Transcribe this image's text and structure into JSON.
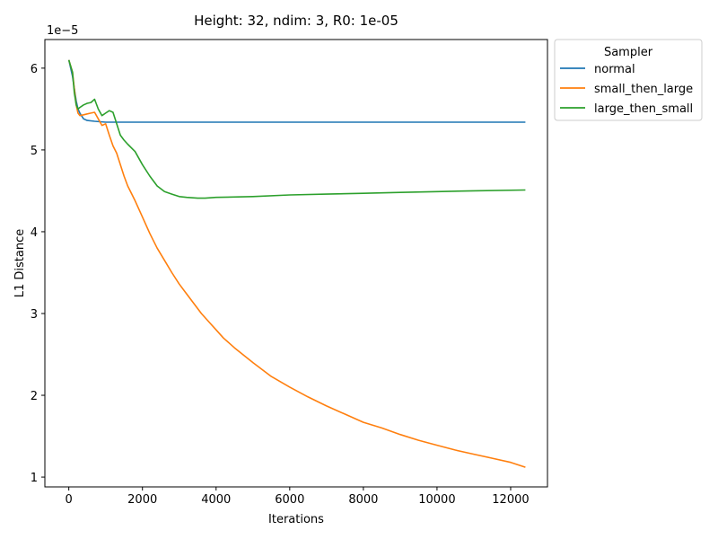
{
  "chart_data": {
    "type": "line",
    "title": "Height: 32, ndim: 3, R0: 1e-05",
    "xlabel": "Iterations",
    "ylabel": "L1 Distance",
    "y_scale_label": "1e−5",
    "xlim": [
      -650,
      13000
    ],
    "ylim": [
      0.88,
      6.35
    ],
    "x_ticks": [
      0,
      2000,
      4000,
      6000,
      8000,
      10000,
      12000
    ],
    "x_tick_labels": [
      "0",
      "2000",
      "4000",
      "6000",
      "8000",
      "10000",
      "12000"
    ],
    "y_ticks": [
      1,
      2,
      3,
      4,
      5,
      6
    ],
    "y_tick_labels": [
      "1",
      "2",
      "3",
      "4",
      "5",
      "6"
    ],
    "grid": false,
    "legend": {
      "title": "Sampler",
      "placement": "outside-top-right"
    },
    "series": [
      {
        "name": "normal",
        "color": "#1f77b4",
        "x": [
          0,
          100,
          150,
          200,
          250,
          300,
          400,
          500,
          700,
          1000,
          1500,
          2000,
          4000,
          8000,
          12400
        ],
        "y": [
          6.1,
          5.9,
          5.75,
          5.6,
          5.5,
          5.45,
          5.38,
          5.36,
          5.35,
          5.34,
          5.34,
          5.34,
          5.34,
          5.34,
          5.34
        ]
      },
      {
        "name": "small_then_large",
        "color": "#ff7f0e",
        "x": [
          0,
          100,
          150,
          200,
          250,
          300,
          400,
          500,
          600,
          700,
          800,
          900,
          1000,
          1100,
          1200,
          1300,
          1400,
          1500,
          1600,
          1800,
          2000,
          2200,
          2400,
          2600,
          2800,
          3000,
          3200,
          3400,
          3600,
          3800,
          4000,
          4200,
          4500,
          5000,
          5500,
          6000,
          6500,
          7000,
          7500,
          8000,
          8500,
          9000,
          9500,
          10000,
          10500,
          11000,
          11500,
          12000,
          12400
        ],
        "y": [
          6.1,
          5.95,
          5.75,
          5.55,
          5.45,
          5.42,
          5.43,
          5.44,
          5.45,
          5.46,
          5.38,
          5.3,
          5.32,
          5.18,
          5.05,
          4.96,
          4.82,
          4.68,
          4.56,
          4.38,
          4.18,
          3.98,
          3.8,
          3.65,
          3.5,
          3.36,
          3.24,
          3.12,
          3.0,
          2.9,
          2.8,
          2.7,
          2.58,
          2.4,
          2.23,
          2.1,
          1.98,
          1.87,
          1.77,
          1.67,
          1.6,
          1.52,
          1.45,
          1.39,
          1.33,
          1.28,
          1.23,
          1.18,
          1.12
        ]
      },
      {
        "name": "large_then_small",
        "color": "#2ca02c",
        "x": [
          0,
          100,
          150,
          200,
          250,
          300,
          400,
          500,
          600,
          700,
          800,
          900,
          1000,
          1100,
          1200,
          1300,
          1400,
          1500,
          1600,
          1800,
          2000,
          2200,
          2400,
          2600,
          2800,
          3000,
          3200,
          3500,
          3700,
          4000,
          5000,
          6000,
          7000,
          8000,
          9000,
          10000,
          11000,
          12400
        ],
        "y": [
          6.1,
          5.95,
          5.7,
          5.55,
          5.5,
          5.52,
          5.55,
          5.57,
          5.58,
          5.62,
          5.5,
          5.42,
          5.45,
          5.48,
          5.46,
          5.32,
          5.18,
          5.12,
          5.07,
          4.98,
          4.82,
          4.68,
          4.56,
          4.49,
          4.46,
          4.43,
          4.42,
          4.41,
          4.41,
          4.42,
          4.43,
          4.45,
          4.46,
          4.47,
          4.48,
          4.49,
          4.5,
          4.51
        ]
      }
    ]
  }
}
